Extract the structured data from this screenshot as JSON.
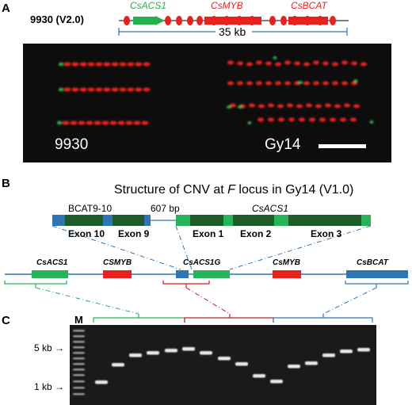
{
  "panelA": {
    "letter": "A",
    "assembly_label": "9930 (V2.0)",
    "gene_labels": {
      "acs1": "CsACS1",
      "myb": "CsMYB",
      "bcat": "CsBCAT"
    },
    "scale_label": "35 kb",
    "left_image_label": "9930",
    "right_image_label": "Gy14",
    "colors": {
      "red": "#e8211d",
      "green": "#22b14c",
      "blue": "#2e75b6",
      "background": "#0d0d0d"
    }
  },
  "panelB": {
    "letter": "B",
    "title_pre": "Structure of CNV at ",
    "title_italic": "F",
    "title_post": " locus in Gy14 (V1.0)",
    "bcat_label": "BCAT9-10",
    "gap_label": "607 bp",
    "acs1_label": "CsACS1",
    "exons": [
      "Exon 10",
      "Exon 9",
      "Exon 1",
      "Exon 2",
      "Exon 3"
    ],
    "map_genes": [
      "CsACS1",
      "CSMYB",
      "CsACS1G",
      "CsMYB",
      "CsBCAT"
    ]
  },
  "panelC": {
    "letter": "C",
    "ladder_label": "M",
    "markers": [
      "5 kb",
      "1 kb"
    ]
  }
}
